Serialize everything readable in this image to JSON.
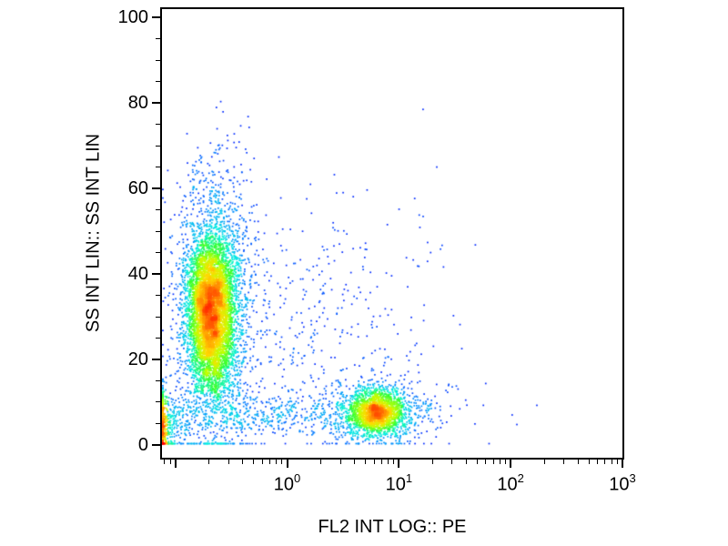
{
  "chart_data": {
    "type": "scatter",
    "subtype": "flow-cytometry-density-dot-plot",
    "title": "",
    "xlabel": "FL2 INT LOG:: PE",
    "ylabel": "SS INT LIN:: SS INT LIN",
    "x_scale": "log10",
    "x_log_range": [
      -1.12,
      3.0
    ],
    "x_major_tick_exponents": [
      0,
      1,
      2,
      3
    ],
    "x_unlabeled_decade_exponents": [
      -1
    ],
    "y_scale": "linear",
    "y_range": [
      -3,
      102
    ],
    "y_ticks": [
      0,
      20,
      40,
      60,
      80,
      100
    ],
    "y_minor_step": 5,
    "grid": false,
    "legend": false,
    "background": "#ffffff",
    "frame_color": "#000000",
    "text_color": "#000000",
    "colormap": [
      "#000080",
      "#0020ff",
      "#0090ff",
      "#00f0e0",
      "#30ff30",
      "#c0ff00",
      "#ffd800",
      "#ff7000",
      "#ff0000"
    ],
    "density_scaling_exponent": 0.45,
    "seed": 1337,
    "populations": [
      {
        "name": "ss-high-pe-negative-core",
        "count": 5200,
        "x_log_mean": -0.68,
        "x_log_sd": 0.1,
        "y_mean": 31,
        "y_sd": 8.5
      },
      {
        "name": "ss-high-pe-negative-halo",
        "count": 2600,
        "x_log_mean": -0.66,
        "x_log_sd": 0.17,
        "y_mean": 32,
        "y_sd": 15
      },
      {
        "name": "debris-bottom-left-corner",
        "count": 700,
        "x_log_mean": -1.16,
        "x_log_sd": 0.12,
        "y_mean": 4.5,
        "y_sd": 4
      },
      {
        "name": "pe-positive-low-ss-core",
        "count": 1600,
        "x_log_mean": 0.8,
        "x_log_sd": 0.12,
        "y_mean": 7.5,
        "y_sd": 2.4
      },
      {
        "name": "pe-positive-low-ss-halo",
        "count": 800,
        "x_log_mean": 0.78,
        "x_log_sd": 0.24,
        "y_mean": 8,
        "y_sd": 4
      },
      {
        "name": "pe-positive-outliers",
        "count": 60,
        "x_log_mean": 1.05,
        "x_log_sd": 0.42,
        "y_mean": 8,
        "y_sd": 3
      },
      {
        "name": "sparse-background",
        "count": 420,
        "x_log_mean": 0.25,
        "x_log_sd": 0.55,
        "y_mean": 28,
        "y_sd": 17
      },
      {
        "name": "low-ss-bridge",
        "count": 420,
        "x_log_mean": -0.15,
        "x_log_sd": 0.5,
        "y_mean": 7,
        "y_sd": 2.5
      }
    ]
  }
}
